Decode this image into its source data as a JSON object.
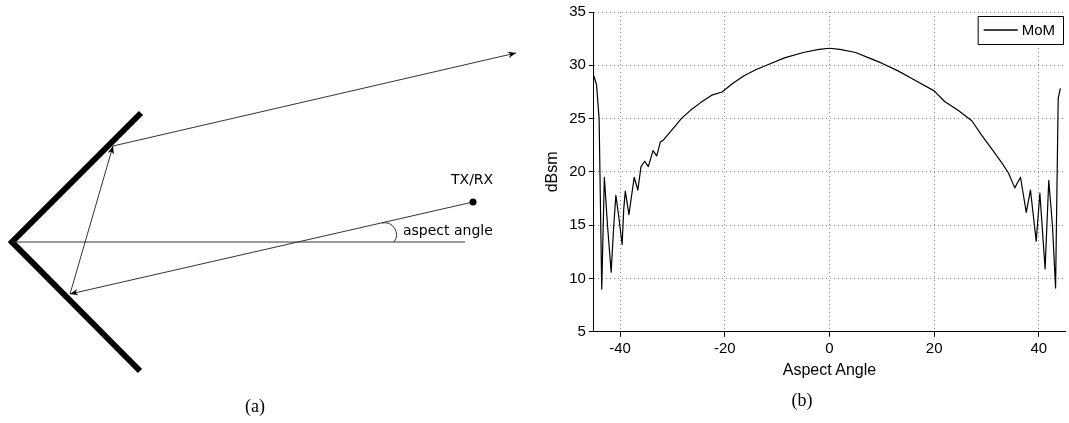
{
  "chart_data": [
    {
      "type": "other",
      "annotations": [
        "TX/RX",
        "aspect angle",
        "(a)"
      ]
    },
    {
      "type": "line",
      "xlabel": "Aspect Angle",
      "ylabel": "dBsm",
      "annotations": [
        "(b)"
      ],
      "xlim": [
        -45,
        45
      ],
      "xticks": [
        -40,
        -20,
        0,
        20,
        40
      ],
      "ylim": [
        5,
        35
      ],
      "yticks": [
        5,
        10,
        15,
        20,
        25,
        30,
        35
      ],
      "grid": true,
      "legend": "top right",
      "marker": "none",
      "line_style": "solid",
      "series": [
        {
          "name": "MoM",
          "color": "#000000",
          "x": [
            -45,
            -44.5,
            -44,
            -43.5,
            -43,
            -42.4,
            -41.7,
            -41.2,
            -40.8,
            -40.3,
            -39.6,
            -39.3,
            -39,
            -38.3,
            -37.3,
            -36.6,
            -36,
            -35.3,
            -34.6,
            -33.7,
            -33,
            -32.3,
            -31.7,
            -30,
            -28.3,
            -26.5,
            -24.6,
            -22.5,
            -20.5,
            -18.5,
            -16.4,
            -14,
            -12,
            -8.6,
            -5,
            -2,
            0,
            2,
            5,
            8,
            10,
            13,
            16,
            20,
            22,
            24.5,
            27.2,
            29,
            31.7,
            33,
            34.2,
            35.4,
            36.5,
            37.6,
            38.4,
            39.5,
            40.2,
            41.2,
            41.9,
            42.6,
            43.2,
            43.7,
            44.1
          ],
          "values": [
            29,
            28.2,
            25,
            9,
            19.5,
            15,
            10.6,
            15,
            17.8,
            16,
            13.2,
            16.5,
            18.2,
            16,
            19.5,
            18.3,
            20.5,
            21,
            20.5,
            22,
            21.5,
            22.8,
            23,
            24,
            25,
            25.8,
            26.5,
            27.2,
            27.5,
            28.3,
            29,
            29.6,
            30,
            30.7,
            31.2,
            31.5,
            31.6,
            31.5,
            31.2,
            30.6,
            30.2,
            29.5,
            28.7,
            27.6,
            26.6,
            25.8,
            24.8,
            23.5,
            21.7,
            20.8,
            19.9,
            18.5,
            19.5,
            16.2,
            18.3,
            13.5,
            18,
            10.9,
            19.2,
            15,
            9.1,
            26.9,
            27.8
          ]
        }
      ]
    }
  ]
}
